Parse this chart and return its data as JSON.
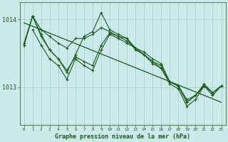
{
  "title": "Graphe pression niveau de la mer (hPa)",
  "bg_color": "#cce9ec",
  "grid_color": "#a8d0d4",
  "line_color": "#1a5c1a",
  "marker_color": "#1a5c1a",
  "xlim": [
    -0.5,
    23.5
  ],
  "ylim": [
    1012.45,
    1014.25
  ],
  "yticks": [
    1013,
    1014
  ],
  "xticks": [
    0,
    1,
    2,
    3,
    4,
    5,
    6,
    7,
    8,
    9,
    10,
    11,
    12,
    13,
    14,
    15,
    16,
    17,
    18,
    19,
    20,
    21,
    22,
    23
  ],
  "xlabel_fontsize": 6.0,
  "series": [
    {
      "x": [
        0,
        1,
        2,
        3,
        4,
        5,
        6,
        7,
        8,
        9,
        10,
        11,
        12,
        13,
        14,
        15,
        16,
        17,
        18,
        19,
        20,
        21,
        22,
        23
      ],
      "y": [
        1013.62,
        1014.05,
        1013.75,
        1013.55,
        1013.42,
        1013.22,
        1013.48,
        1013.75,
        1013.82,
        1014.1,
        1013.85,
        1013.78,
        1013.72,
        1013.55,
        1013.48,
        1013.35,
        1013.28,
        1013.08,
        1013.02,
        1012.82,
        1012.88,
        1013.05,
        1012.92,
        1013.02
      ]
    },
    {
      "x": [
        0,
        1,
        2,
        3,
        4,
        5,
        6,
        7,
        8,
        9,
        10,
        11,
        12,
        13,
        14,
        15,
        16,
        17,
        18,
        19,
        20,
        21,
        22,
        23
      ],
      "y": [
        1013.62,
        1014.05,
        1013.78,
        1013.55,
        1013.42,
        1013.25,
        1013.45,
        1013.38,
        1013.32,
        1013.62,
        1013.8,
        1013.75,
        1013.68,
        1013.58,
        1013.48,
        1013.38,
        1013.32,
        1013.08,
        1013.02,
        1012.78,
        1012.88,
        1013.02,
        1012.92,
        1013.02
      ]
    },
    {
      "x": [
        1,
        2,
        3,
        4,
        5,
        6,
        7,
        8,
        9,
        10,
        11,
        12,
        13,
        14,
        15,
        16,
        17,
        18,
        19,
        20,
        21,
        22,
        23
      ],
      "y": [
        1013.85,
        1013.62,
        1013.42,
        1013.32,
        1013.12,
        1013.42,
        1013.32,
        1013.25,
        1013.55,
        1013.78,
        1013.72,
        1013.65,
        1013.58,
        1013.48,
        1013.38,
        1013.28,
        1013.05,
        1012.98,
        1012.72,
        1012.82,
        1013.02,
        1012.88,
        1013.02
      ]
    },
    {
      "x": [
        0,
        1,
        2,
        3,
        4,
        5,
        6,
        7,
        8,
        9,
        10,
        11,
        12,
        13,
        14,
        15,
        16,
        17,
        18,
        19,
        20,
        21,
        22,
        23
      ],
      "y": [
        1013.65,
        1014.05,
        1013.85,
        1013.75,
        1013.65,
        1013.58,
        1013.72,
        1013.72,
        1013.78,
        1013.88,
        1013.82,
        1013.75,
        1013.72,
        1013.58,
        1013.52,
        1013.42,
        1013.35,
        1013.08,
        1013.02,
        1012.78,
        1012.88,
        1013.02,
        1012.92,
        1013.02
      ]
    }
  ],
  "diagonal_line": {
    "x": [
      0,
      23
    ],
    "y": [
      1013.95,
      1012.78
    ]
  }
}
